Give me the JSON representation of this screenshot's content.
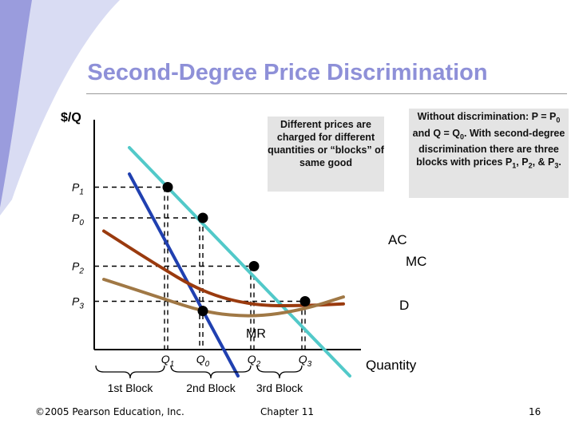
{
  "slide": {
    "title": "Second-Degree Price Discrimination",
    "footer_copyright": "©2005 Pearson Education, Inc.",
    "footer_chapter": "Chapter 11",
    "footer_page": "16",
    "accent_color": "#8e90d8"
  },
  "annotations": {
    "blocks_note": "Different prices are charged for different quantities or “blocks” of same good",
    "without_note_1": "Without discrimination: P = P",
    "without_note_sub0": "0",
    "without_note_2": " and Q = Q",
    "without_note_sub1": "0",
    "without_note_3": ". With second-degree discrimination there are three blocks with prices P",
    "without_note_sub2": "1",
    "without_note_4": ", P",
    "without_note_sub3": "2",
    "without_note_5": ", & P",
    "without_note_sub4": "3",
    "without_note_6": "."
  },
  "chart_data": {
    "type": "line",
    "ylabel": "$/Q",
    "xlabel": "Quantity",
    "y_ticks": [
      {
        "main": "P",
        "sub": "1",
        "value": 1.85
      },
      {
        "main": "P",
        "sub": "0",
        "value": 1.5
      },
      {
        "main": "P",
        "sub": "2",
        "value": 0.95
      },
      {
        "main": "P",
        "sub": "3",
        "value": 0.55
      }
    ],
    "x_ticks": [
      {
        "main": "Q",
        "sub": "1",
        "value": 2.3
      },
      {
        "main": "Q",
        "sub": "0",
        "value": 3.4
      },
      {
        "main": "Q",
        "sub": "2",
        "value": 5.0
      },
      {
        "main": "Q",
        "sub": "3",
        "value": 6.6
      }
    ],
    "blocks": [
      {
        "label": "1st Block",
        "from": 0.0,
        "to": 2.3
      },
      {
        "label": "2nd Block",
        "from": 2.3,
        "to": 5.0
      },
      {
        "label": "3rd Block",
        "from": 5.0,
        "to": 6.6
      }
    ],
    "series": [
      {
        "name": "D",
        "color": "#52c9c9",
        "points": [
          [
            1.1,
            2.3
          ],
          [
            8.0,
            -0.3
          ]
        ]
      },
      {
        "name": "MR",
        "color": "#2040b0",
        "points": [
          [
            1.1,
            2.0
          ],
          [
            4.5,
            -0.3
          ]
        ]
      },
      {
        "name": "AC",
        "color": "#9a3a0e",
        "points": [
          [
            0.3,
            1.35
          ],
          [
            1.8,
            1.0
          ],
          [
            3.4,
            0.65
          ],
          [
            5.0,
            0.5
          ],
          [
            6.6,
            0.5
          ],
          [
            7.8,
            0.52
          ]
        ]
      },
      {
        "name": "MC",
        "color": "#a07845",
        "points": [
          [
            0.3,
            0.8
          ],
          [
            2.0,
            0.6
          ],
          [
            3.5,
            0.42
          ],
          [
            5.0,
            0.37
          ],
          [
            6.5,
            0.45
          ],
          [
            7.8,
            0.6
          ]
        ]
      }
    ],
    "price_points": [
      {
        "x": 2.3,
        "y": 1.85
      },
      {
        "x": 3.4,
        "y": 1.5
      },
      {
        "x": 5.0,
        "y": 0.95
      },
      {
        "x": 6.6,
        "y": 0.55
      },
      {
        "x": 3.4,
        "y": 0.44
      }
    ],
    "xlim": [
      0,
      9
    ],
    "ylim": [
      0,
      2.5
    ]
  }
}
